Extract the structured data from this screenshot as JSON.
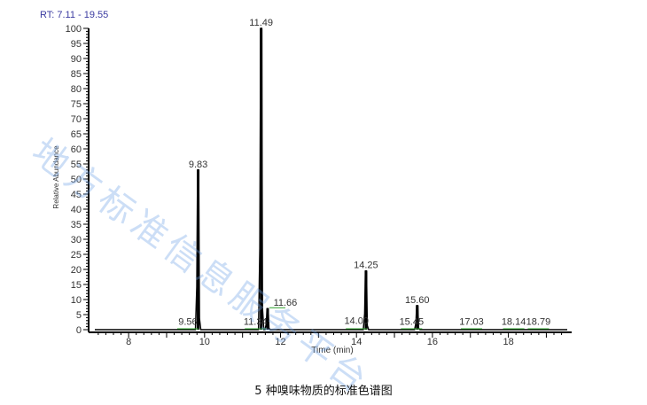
{
  "chart_data": {
    "type": "line",
    "rt_range_label": "RT: 7.11 - 19.55",
    "xlabel": "Time (min)",
    "ylabel": "Relative Abundance",
    "xlim": [
      7.11,
      19.55
    ],
    "ylim": [
      0,
      100
    ],
    "x_ticks": [
      8,
      10,
      12,
      14,
      16,
      18
    ],
    "y_ticks": [
      0,
      5,
      10,
      15,
      20,
      25,
      30,
      35,
      40,
      45,
      50,
      55,
      60,
      65,
      70,
      75,
      80,
      85,
      90,
      95,
      100
    ],
    "grid": false,
    "peaks": [
      {
        "rt": 9.83,
        "abundance": 53
      },
      {
        "rt": 11.49,
        "abundance": 100
      },
      {
        "rt": 11.66,
        "abundance": 7
      },
      {
        "rt": 14.25,
        "abundance": 19.5
      },
      {
        "rt": 15.6,
        "abundance": 8
      }
    ],
    "peak_labels": [
      {
        "text": "9.56",
        "rt": 9.56,
        "abundance": 0.5
      },
      {
        "text": "9.83",
        "rt": 9.83,
        "abundance": 53
      },
      {
        "text": "11.34",
        "rt": 11.34,
        "abundance": 0.5
      },
      {
        "text": "11.49",
        "rt": 11.49,
        "abundance": 100
      },
      {
        "text": "11.66",
        "rt": 11.66,
        "abundance": 7
      },
      {
        "text": "14.00",
        "rt": 14.0,
        "abundance": 0.8
      },
      {
        "text": "14.25",
        "rt": 14.25,
        "abundance": 19.5
      },
      {
        "text": "15.45",
        "rt": 15.45,
        "abundance": 0.5
      },
      {
        "text": "15.60",
        "rt": 15.6,
        "abundance": 8
      },
      {
        "text": "17.03",
        "rt": 17.03,
        "abundance": 0.5
      },
      {
        "text": "18.14",
        "rt": 18.14,
        "abundance": 0.5
      },
      {
        "text": "18.79",
        "rt": 18.79,
        "abundance": 0.5
      }
    ],
    "colors": {
      "trace": "#000000",
      "integration": "#2ca02c",
      "rt_range": "#3a3aa0"
    }
  },
  "watermark": "地方标准信息服务平台",
  "caption": "5 种嗅味物质的标准色谱图"
}
